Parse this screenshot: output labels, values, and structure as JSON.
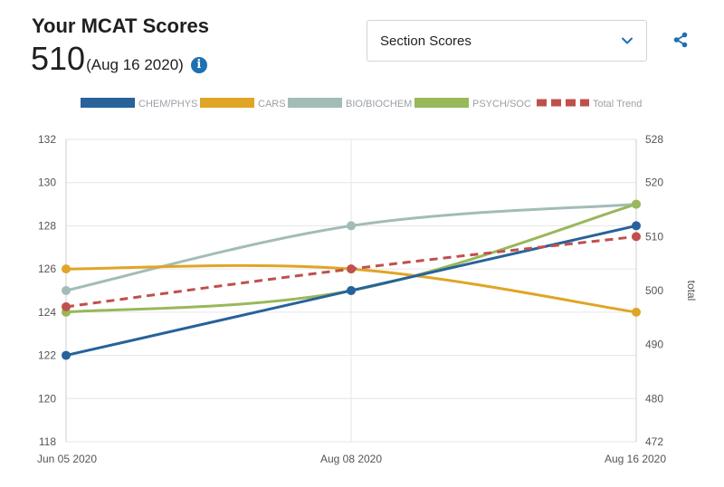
{
  "header": {
    "title": "Your MCAT Scores",
    "score": "510",
    "score_date": "(Aug 16 2020)",
    "info_icon": "i"
  },
  "dropdown": {
    "selected": "Section Scores"
  },
  "colors": {
    "chem": "#27629b",
    "cars": "#e0a526",
    "bio": "#a2bcb8",
    "psych": "#98b85a",
    "total": "#c0504d",
    "accent": "#1f6fb4"
  },
  "chart_data": {
    "type": "line",
    "categories": [
      "Jun 05 2020",
      "Aug 08 2020",
      "Aug 16 2020"
    ],
    "series": [
      {
        "name": "CHEM/PHYS",
        "axis": "left",
        "values": [
          122,
          125,
          128
        ],
        "color": "#27629b",
        "dashed": false
      },
      {
        "name": "CARS",
        "axis": "left",
        "values": [
          126,
          126,
          124
        ],
        "color": "#e0a526",
        "dashed": false
      },
      {
        "name": "BIO/BIOCHEM",
        "axis": "left",
        "values": [
          125,
          128,
          129
        ],
        "color": "#a2bcb8",
        "dashed": false
      },
      {
        "name": "PSYCH/SOC",
        "axis": "left",
        "values": [
          124,
          125,
          129
        ],
        "color": "#98b85a",
        "dashed": false
      },
      {
        "name": "Total Trend",
        "axis": "right",
        "values": [
          497,
          504,
          510
        ],
        "color": "#c0504d",
        "dashed": true
      }
    ],
    "y_left": {
      "min": 118,
      "max": 132,
      "ticks": [
        118,
        120,
        122,
        124,
        126,
        128,
        130,
        132
      ]
    },
    "y_right": {
      "label": "total",
      "min": 472,
      "max": 528,
      "ticks": [
        472,
        480,
        490,
        500,
        510,
        520,
        528
      ]
    },
    "grid": true,
    "legend": "top"
  }
}
